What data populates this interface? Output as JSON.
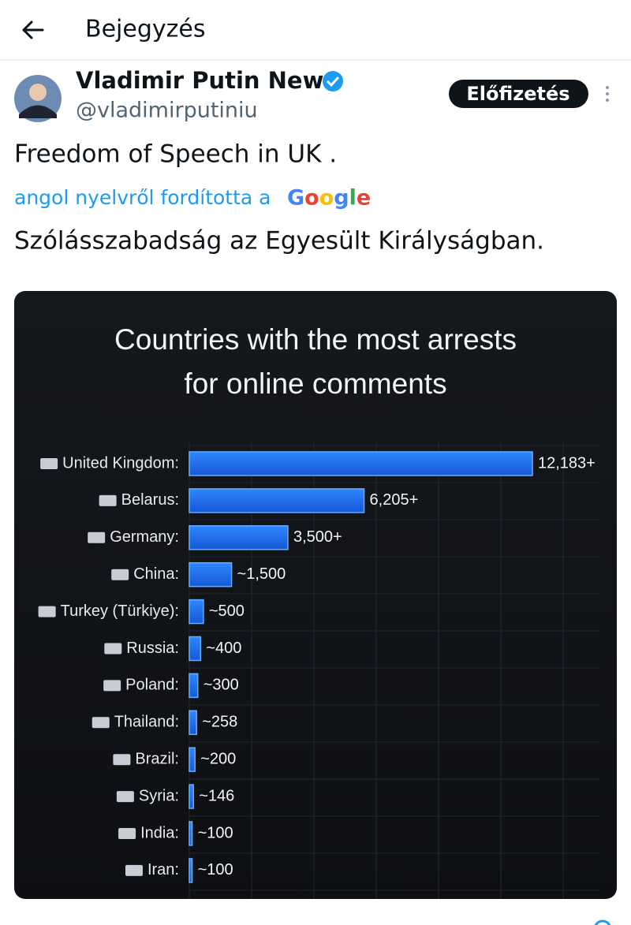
{
  "header": {
    "title": "Bejegyzés"
  },
  "post": {
    "author": "Vladimir Putin News",
    "handle": "@vladimirputiniu",
    "subscribe_button": "Előfizetés",
    "text": "Freedom of Speech in UK .",
    "translation_note": "angol nyelvről fordította a",
    "translator": "Google",
    "translated_text": "Szólásszabadság az Egyesült Királyságban."
  },
  "chart_data": {
    "type": "bar",
    "orientation": "horizontal",
    "title": [
      "Countries with the most arrests",
      "for online comments"
    ],
    "categories": [
      "United Kingdom:",
      "Belarus:",
      "Germany:",
      "China:",
      "Turkey (Türkiye):",
      "Russia:",
      "Poland:",
      "Thailand:",
      "Brazil:",
      "Syria:",
      "India:",
      "Iran:"
    ],
    "values": [
      12183,
      6205,
      3500,
      1500,
      500,
      400,
      300,
      258,
      200,
      146,
      100,
      100
    ],
    "value_labels": [
      "12,183+",
      "6,205+",
      "3,500+",
      "~1,500",
      "~500",
      "~400",
      "~300",
      "~258",
      "~200",
      "~146",
      "~100",
      "~100"
    ],
    "color": "#1f6ff2"
  }
}
